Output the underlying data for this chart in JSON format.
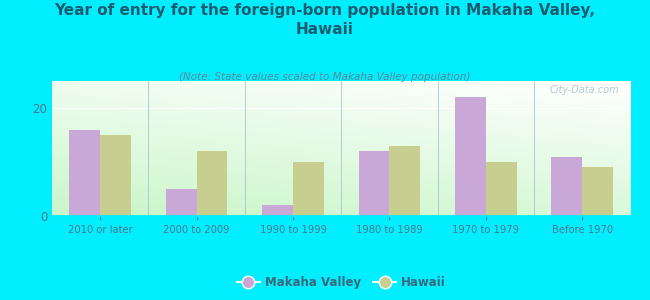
{
  "categories": [
    "2010 or later",
    "2000 to 2009",
    "1990 to 1999",
    "1980 to 1989",
    "1970 to 1979",
    "Before 1970"
  ],
  "makaha_valley": [
    16,
    5,
    2,
    12,
    22,
    11
  ],
  "hawaii": [
    15,
    12,
    10,
    13,
    10,
    9
  ],
  "makaha_color": "#c9a8d8",
  "hawaii_color": "#c8ce90",
  "title": "Year of entry for the foreign-born population in Makaha Valley,\nHawaii",
  "subtitle": "(Note: State values scaled to Makaha Valley population)",
  "legend_makaha": "Makaha Valley",
  "legend_hawaii": "Hawaii",
  "background_outer": "#00eeff",
  "ylim": [
    0,
    25
  ],
  "yticks": [
    0,
    20
  ],
  "watermark": "City-Data.com",
  "bar_width": 0.32,
  "title_color": "#1a5c6e",
  "subtitle_color": "#5a8a96",
  "tick_color": "#4a7a8a"
}
